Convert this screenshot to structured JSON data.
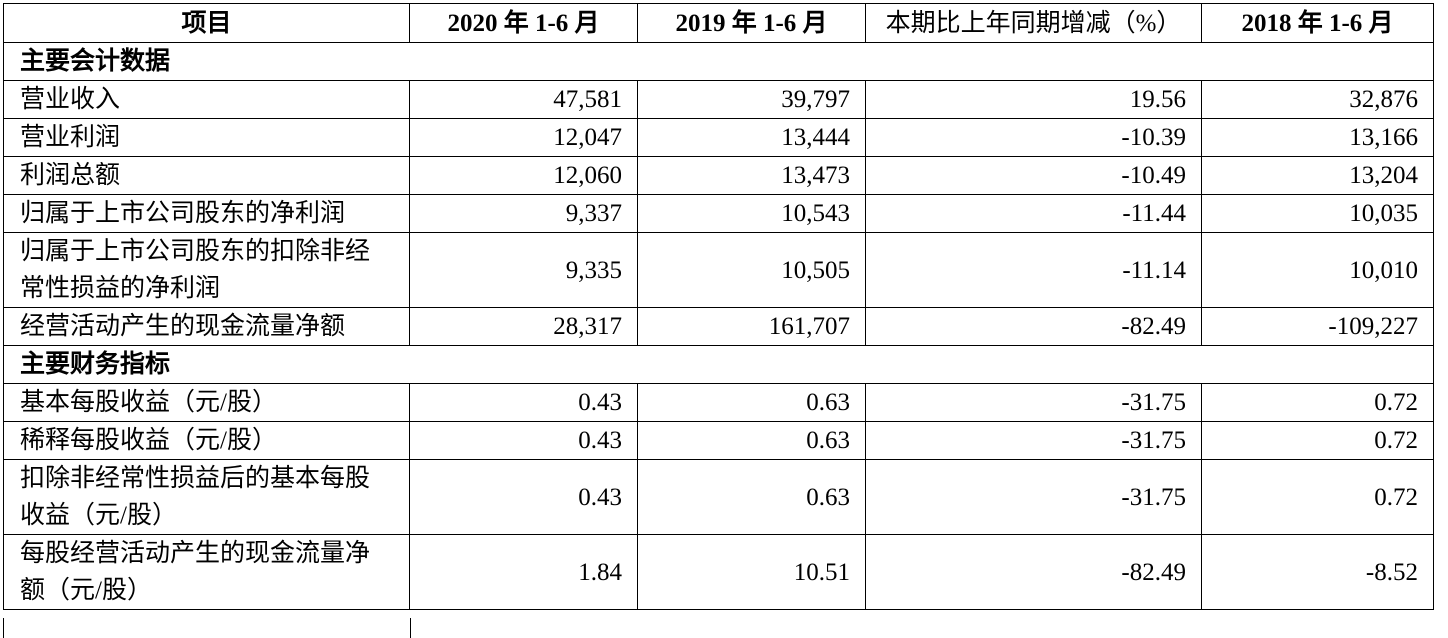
{
  "header": [
    "项目",
    "2020 年 1-6 月",
    "2019 年 1-6 月",
    "本期比上年同期增减（%）",
    "2018 年 1-6 月"
  ],
  "sections": [
    {
      "title": "主要会计数据",
      "rows": [
        {
          "label": "营业收入",
          "values": [
            "47,581",
            "39,797",
            "19.56",
            "32,876"
          ]
        },
        {
          "label": "营业利润",
          "values": [
            "12,047",
            "13,444",
            "-10.39",
            "13,166"
          ]
        },
        {
          "label": "利润总额",
          "values": [
            "12,060",
            "13,473",
            "-10.49",
            "13,204"
          ]
        },
        {
          "label": "归属于上市公司股东的净利润",
          "values": [
            "9,337",
            "10,543",
            "-11.44",
            "10,035"
          ]
        },
        {
          "label": "归属于上市公司股东的扣除非经常性损益的净利润",
          "values": [
            "9,335",
            "10,505",
            "-11.14",
            "10,010"
          ]
        },
        {
          "label": "经营活动产生的现金流量净额",
          "values": [
            "28,317",
            "161,707",
            "-82.49",
            "-109,227"
          ]
        }
      ]
    },
    {
      "title": "主要财务指标",
      "rows": [
        {
          "label": "基本每股收益（元/股）",
          "values": [
            "0.43",
            "0.63",
            "-31.75",
            "0.72"
          ]
        },
        {
          "label": "稀释每股收益（元/股）",
          "values": [
            "0.43",
            "0.63",
            "-31.75",
            "0.72"
          ]
        },
        {
          "label": "扣除非经常性损益后的基本每股收益（元/股）",
          "values": [
            "0.43",
            "0.63",
            "-31.75",
            "0.72"
          ]
        },
        {
          "label": "每股经营活动产生的现金流量净额（元/股）",
          "values": [
            "1.84",
            "10.51",
            "-82.49",
            "-8.52"
          ]
        }
      ]
    }
  ]
}
